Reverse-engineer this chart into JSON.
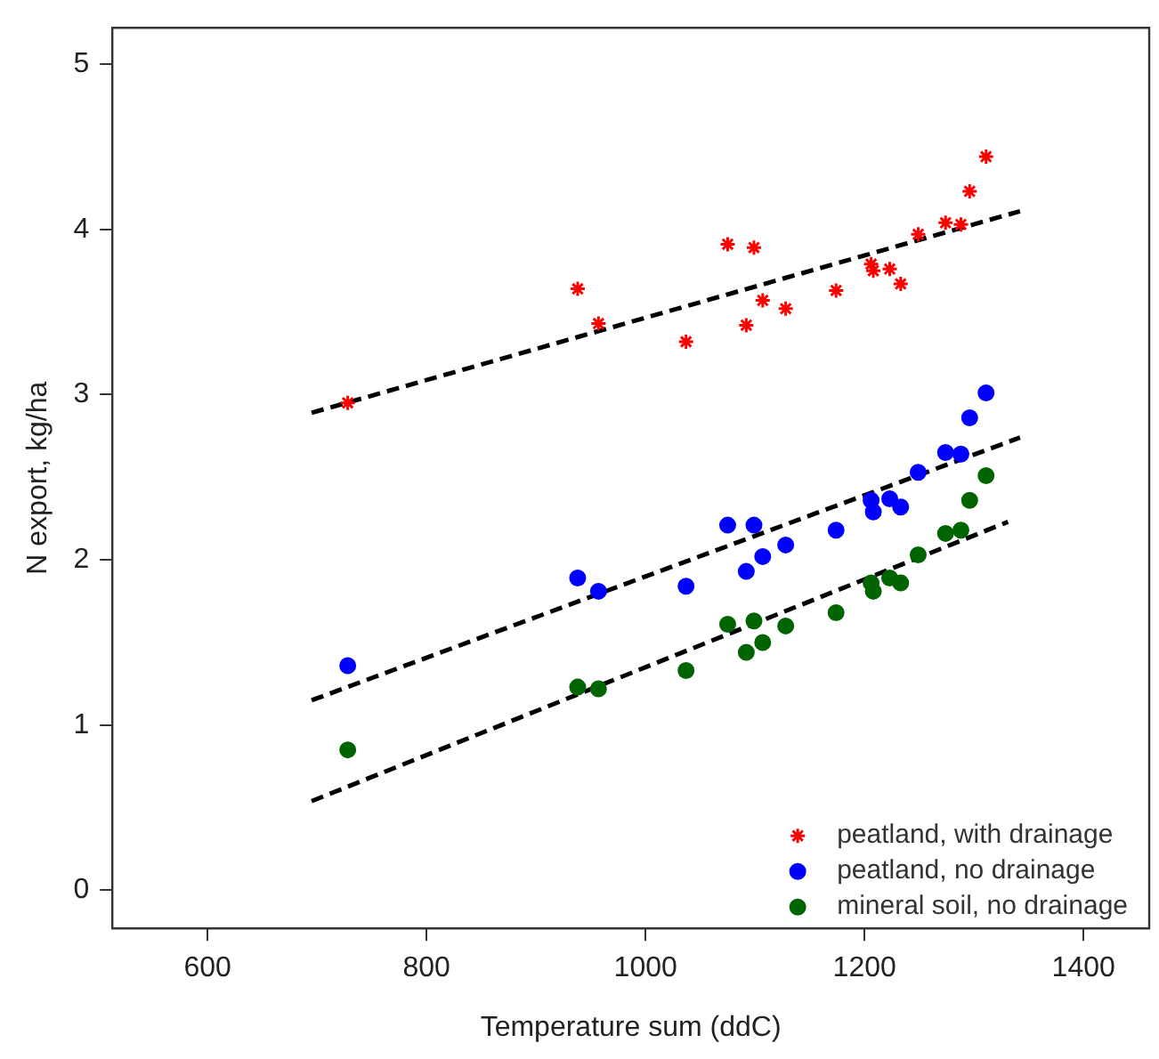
{
  "chart_data": {
    "type": "scatter",
    "xlabel": "Temperature sum (ddC)",
    "ylabel": "N export, kg/ha",
    "xlim": [
      513,
      1460
    ],
    "ylim": [
      -0.23,
      5.22
    ],
    "xticks": [
      600,
      800,
      1000,
      1200,
      1400
    ],
    "yticks": [
      0,
      1,
      2,
      3,
      4,
      5
    ],
    "grid": false,
    "legend": "bottom right",
    "series": [
      {
        "name": "peatland, with drainage",
        "type": "scatter",
        "marker": "cross",
        "color": "#ff0000",
        "x": [
          728,
          938,
          957,
          1037,
          1075,
          1092,
          1099,
          1107,
          1128,
          1174,
          1206,
          1208,
          1223,
          1233,
          1249,
          1274,
          1288,
          1296,
          1311
        ],
        "values": [
          2.95,
          3.64,
          3.43,
          3.32,
          3.91,
          3.42,
          3.89,
          3.57,
          3.52,
          3.63,
          3.79,
          3.75,
          3.76,
          3.67,
          3.97,
          4.04,
          4.03,
          4.23,
          4.44
        ]
      },
      {
        "name": "peatland, no drainage",
        "type": "scatter",
        "marker": "circle",
        "color": "#0000ff",
        "x": [
          728,
          938,
          957,
          1037,
          1075,
          1092,
          1099,
          1107,
          1128,
          1174,
          1206,
          1208,
          1223,
          1233,
          1249,
          1274,
          1288,
          1296,
          1311
        ],
        "values": [
          1.36,
          1.89,
          1.81,
          1.84,
          2.21,
          1.93,
          2.21,
          2.02,
          2.09,
          2.18,
          2.36,
          2.29,
          2.37,
          2.32,
          2.53,
          2.65,
          2.64,
          2.86,
          3.01
        ]
      },
      {
        "name": "mineral soil, no drainage",
        "type": "scatter",
        "marker": "circle",
        "color": "#006400",
        "x": [
          728,
          938,
          957,
          1037,
          1075,
          1092,
          1099,
          1107,
          1128,
          1174,
          1206,
          1208,
          1223,
          1233,
          1249,
          1274,
          1288,
          1296,
          1311
        ],
        "values": [
          0.85,
          1.23,
          1.22,
          1.33,
          1.61,
          1.44,
          1.63,
          1.5,
          1.6,
          1.68,
          1.86,
          1.81,
          1.89,
          1.86,
          2.03,
          2.16,
          2.18,
          2.36,
          2.51
        ]
      },
      {
        "type": "line",
        "marker": "none",
        "line_style": "dashed",
        "color": "#000000",
        "x": [
          695,
          1342
        ],
        "values": [
          2.89,
          4.11
        ]
      },
      {
        "type": "line",
        "marker": "none",
        "line_style": "dashed",
        "color": "#000000",
        "x": [
          695,
          1342
        ],
        "values": [
          1.15,
          2.74
        ]
      },
      {
        "type": "line",
        "marker": "none",
        "line_style": "dashed",
        "color": "#000000",
        "x": [
          695,
          1331
        ],
        "values": [
          0.54,
          2.23
        ]
      }
    ]
  }
}
